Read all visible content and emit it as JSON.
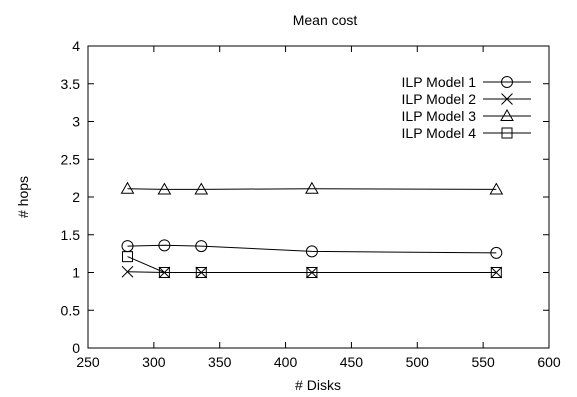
{
  "chart_data": {
    "type": "line",
    "title": "Mean cost",
    "xlabel": "# Disks",
    "ylabel": "# hops",
    "xlim": [
      250,
      600
    ],
    "ylim": [
      0,
      4
    ],
    "xticks": [
      250,
      300,
      350,
      400,
      450,
      500,
      550,
      600
    ],
    "yticks": [
      0,
      0.5,
      1,
      1.5,
      2,
      2.5,
      3,
      3.5,
      4
    ],
    "x": [
      280,
      308,
      336,
      420,
      560
    ],
    "grid": false,
    "legend_position": "top-right",
    "series": [
      {
        "name": "ILP Model 1",
        "marker": "circle",
        "values": [
          1.35,
          1.36,
          1.35,
          1.28,
          1.26
        ]
      },
      {
        "name": "ILP Model 2",
        "marker": "x",
        "values": [
          1.01,
          1.0,
          1.0,
          1.0,
          1.0
        ]
      },
      {
        "name": "ILP Model 3",
        "marker": "triangle",
        "values": [
          2.11,
          2.1,
          2.1,
          2.11,
          2.1
        ]
      },
      {
        "name": "ILP Model 4",
        "marker": "square",
        "values": [
          1.21,
          1.0,
          1.0,
          1.0,
          1.0
        ]
      }
    ]
  }
}
